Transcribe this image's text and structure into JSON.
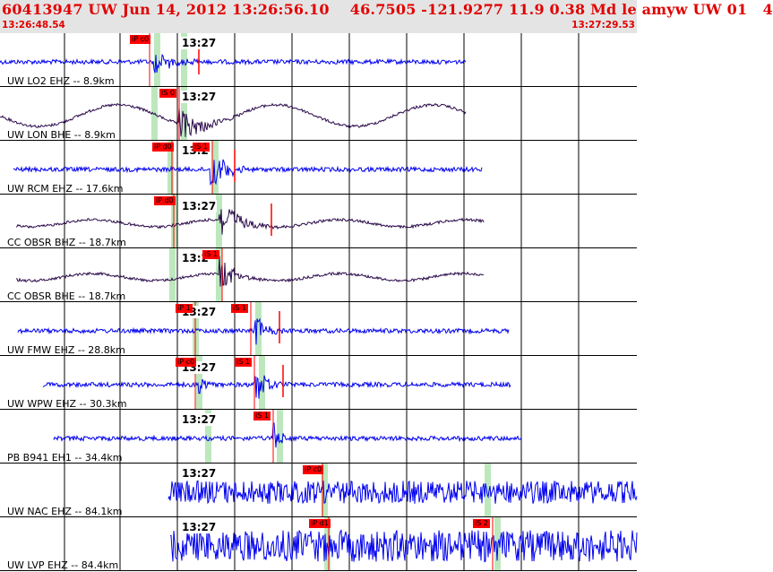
{
  "header": {
    "title": "60413947 UW Jun 14, 2012 13:26:56.10    46.7505 -121.9277 11.9 0.38 Md le amyw UW 01   4",
    "start_time": "13:26:48.54",
    "end_time": "13:27:29.53"
  },
  "colors": {
    "header_text": "#e00000",
    "header_bg": "#e4e4e4",
    "trace_vertical": "#0000ee",
    "trace_horizontal": "#2b0a4a",
    "pick": "#ff0000",
    "phase_window": "#bde8bd"
  },
  "panels": [
    {
      "label": "UW LO2 EHZ -- 8.9km",
      "minute": "13:27",
      "color": "#0000ee",
      "start": 0,
      "end": 520,
      "picks": [
        {
          "text": "iP c0"
        }
      ],
      "green": [
        175,
        205
      ]
    },
    {
      "label": "UW LON BHE -- 8.9km",
      "minute": "13:27",
      "color": "#2b0a4a",
      "start": 0,
      "end": 520,
      "picks": [
        {
          "text": "iS 0"
        }
      ],
      "green": [
        172,
        205
      ]
    },
    {
      "label": "UW RCM EHZ -- 17.6km",
      "minute": "13:2",
      "color": "#0000ee",
      "start": 15,
      "end": 538,
      "picks": [
        {
          "text": "iP d0"
        },
        {
          "text": "iS 1"
        }
      ],
      "green": [
        190,
        240
      ]
    },
    {
      "label": "CC OBSR BHZ -- 18.7km",
      "minute": "13:27",
      "color": "#2b0a4a",
      "start": 18,
      "end": 540,
      "picks": [
        {
          "text": "iP d0"
        }
      ],
      "green": [
        194,
        244
      ]
    },
    {
      "label": "CC OBSR BHE -- 18.7km",
      "minute": "13:2",
      "color": "#2b0a4a",
      "start": 18,
      "end": 540,
      "picks": [
        {
          "text": "iS 1"
        }
      ],
      "green": [
        192,
        244
      ]
    },
    {
      "label": "UW FMW EHZ -- 28.8km",
      "minute": "13:27",
      "color": "#0000ee",
      "start": 20,
      "end": 568,
      "picks": [
        {
          "text": "iP 1"
        },
        {
          "text": "iS 1"
        }
      ],
      "green": [
        218,
        288
      ]
    },
    {
      "label": "UW WPW EHZ -- 30.3km",
      "minute": "13:27",
      "color": "#0000ee",
      "start": 48,
      "end": 570,
      "picks": [
        {
          "text": "iP c0"
        },
        {
          "text": "iS 1"
        }
      ],
      "green": [
        222,
        292
      ]
    },
    {
      "label": "PB B941 EH1 -- 34.4km",
      "minute": "13:27",
      "color": "#0000ee",
      "start": 60,
      "end": 582,
      "picks": [
        {
          "text": "iS 1"
        }
      ],
      "green": [
        232,
        312
      ]
    },
    {
      "label": "UW NAC EHZ -- 84.1km",
      "minute": "13:27",
      "color": "#0000ee",
      "start": 188,
      "end": 711,
      "picks": [
        {
          "text": "iP c0"
        }
      ],
      "green": [
        362,
        544
      ]
    },
    {
      "label": "UW LVP EHZ -- 84.4km",
      "minute": "13:27",
      "color": "#0000ee",
      "start": 190,
      "end": 711,
      "picks": [
        {
          "text": "iP d1"
        },
        {
          "text": "iS 2"
        }
      ],
      "green": [
        365,
        555
      ]
    }
  ]
}
